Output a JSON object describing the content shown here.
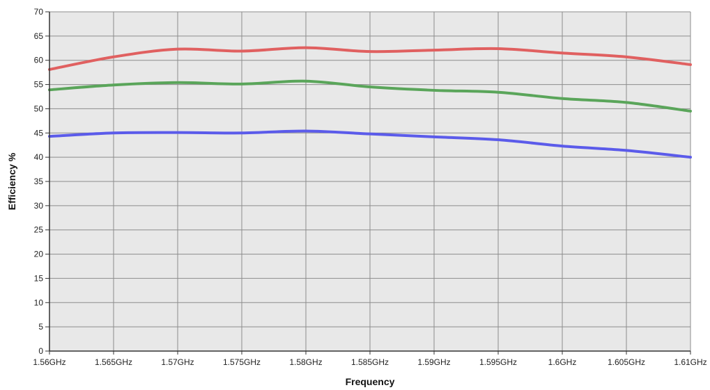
{
  "chart_data": {
    "type": "line",
    "xlabel": "Frequency",
    "ylabel": "Efficiency %",
    "xlim": [
      1.56,
      1.61
    ],
    "ylim": [
      0,
      70
    ],
    "x_ticks": [
      1.56,
      1.565,
      1.57,
      1.575,
      1.58,
      1.585,
      1.59,
      1.595,
      1.6,
      1.605,
      1.61
    ],
    "x_tick_labels": [
      "1.56GHz",
      "1.565GHz",
      "1.57GHz",
      "1.575GHz",
      "1.58GHz",
      "1.585GHz",
      "1.59GHz",
      "1.595GHz",
      "1.6GHz",
      "1.605GHz",
      "1.61GHz"
    ],
    "y_ticks": [
      0,
      5,
      10,
      15,
      20,
      25,
      30,
      35,
      40,
      45,
      50,
      55,
      60,
      65,
      70
    ],
    "y_tick_labels": [
      "0",
      "5",
      "10",
      "15",
      "20",
      "25",
      "30",
      "35",
      "40",
      "45",
      "50",
      "55",
      "60",
      "65",
      "70"
    ],
    "grid": true,
    "legend": "none",
    "plot_background": "#e8e8e8",
    "grid_color": "#8c8c8c",
    "x": [
      1.56,
      1.565,
      1.57,
      1.575,
      1.58,
      1.585,
      1.59,
      1.595,
      1.6,
      1.605,
      1.61
    ],
    "series": [
      {
        "color": "#e06060",
        "values": [
          58.1,
          60.7,
          62.3,
          61.9,
          62.6,
          61.8,
          62.1,
          62.4,
          61.5,
          60.7,
          59.1
        ]
      },
      {
        "color": "#5aa55a",
        "values": [
          53.9,
          54.9,
          55.4,
          55.1,
          55.7,
          54.5,
          53.8,
          53.4,
          52.1,
          51.3,
          49.5
        ]
      },
      {
        "color": "#5b5bea",
        "values": [
          44.3,
          45.0,
          45.1,
          45.0,
          45.4,
          44.8,
          44.2,
          43.6,
          42.3,
          41.4,
          40.0
        ]
      }
    ]
  }
}
